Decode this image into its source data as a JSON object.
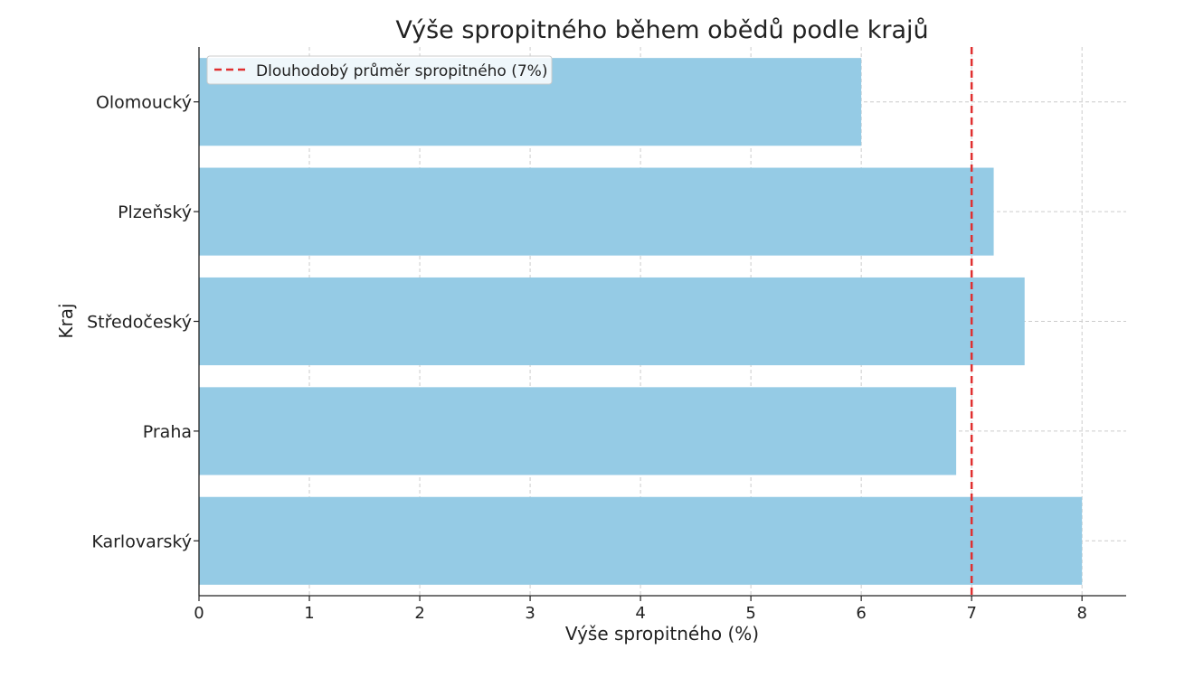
{
  "chart_data": {
    "type": "bar",
    "orientation": "horizontal",
    "title": "Výše spropitného během obědů podle krajů",
    "xlabel": "Výše spropitného (%)",
    "ylabel": "Kraj",
    "categories": [
      "Olomoucký",
      "Plzeňský",
      "Středočeský",
      "Praha",
      "Karlovarský"
    ],
    "values": [
      6.0,
      7.2,
      7.48,
      6.86,
      8.0
    ],
    "xlim": [
      0,
      8.4
    ],
    "xticks": [
      0,
      1,
      2,
      3,
      4,
      5,
      6,
      7,
      8
    ],
    "grid": true,
    "legend_position": "top-left",
    "bar_color": "#95cbe5",
    "reference_line": {
      "value": 7,
      "label": "Dlouhodobý průměr spropitného (7%)",
      "color": "#e03030",
      "style": "dashed"
    }
  }
}
